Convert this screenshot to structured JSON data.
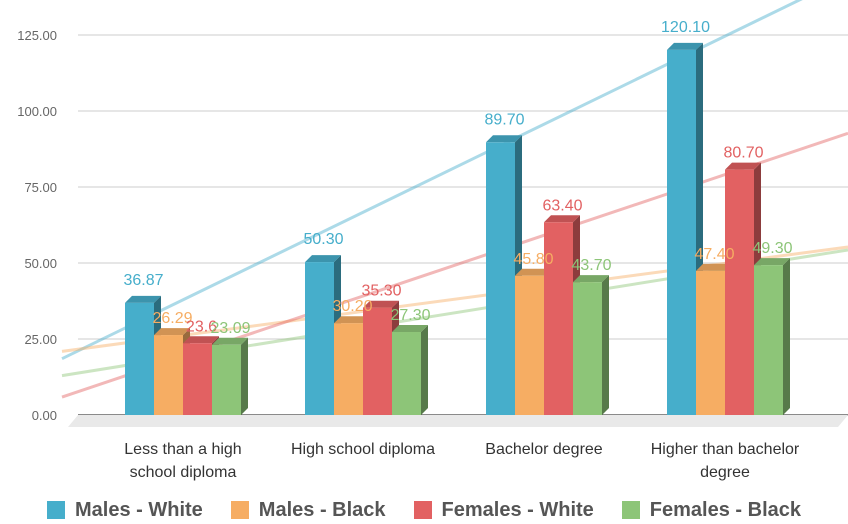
{
  "chart_data": {
    "type": "bar",
    "categories": [
      [
        "Less than a high",
        "school diploma"
      ],
      [
        "High school diploma"
      ],
      [
        "Bachelor degree"
      ],
      [
        "Higher than bachelor",
        "degree"
      ]
    ],
    "series": [
      {
        "name": "Males - White",
        "color": "#46aecb",
        "values": [
          36.87,
          50.3,
          89.7,
          120.1
        ],
        "labels": [
          "36.87",
          "50.30",
          "89.70",
          "120.10"
        ]
      },
      {
        "name": "Males - Black",
        "color": "#f6ad63",
        "values": [
          26.29,
          30.2,
          45.8,
          47.4
        ],
        "labels": [
          "26.29",
          "30.20",
          "45.80",
          "47.40"
        ]
      },
      {
        "name": "Females - White",
        "color": "#e26162",
        "values": [
          23.6,
          35.3,
          63.4,
          80.7
        ],
        "labels": [
          "23.6",
          "35.30",
          "63.40",
          "80.70"
        ]
      },
      {
        "name": "Females - Black",
        "color": "#8dc578",
        "values": [
          23.09,
          27.3,
          43.7,
          49.3
        ],
        "labels": [
          "23.09",
          "27.30",
          "43.70",
          "49.30"
        ]
      }
    ],
    "y_ticks": [
      "0.00",
      "25.00",
      "50.00",
      "75.00",
      "100.00",
      "125.00"
    ],
    "ylim": [
      0,
      125
    ],
    "trendlines": true,
    "grid": true,
    "legend": "bottom",
    "title": "",
    "xlabel": "",
    "ylabel": ""
  }
}
